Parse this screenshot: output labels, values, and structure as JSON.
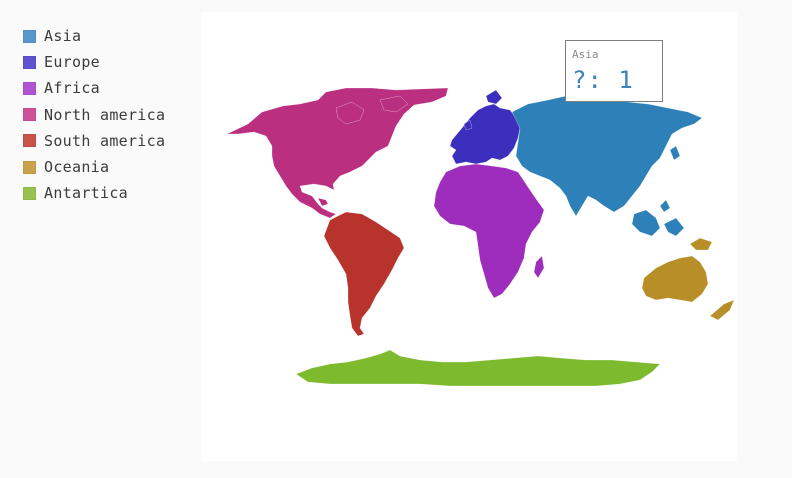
{
  "legend": [
    {
      "label": "Asia",
      "color": "#5897cb"
    },
    {
      "label": "Europe",
      "color": "#5d52d0"
    },
    {
      "label": "Africa",
      "color": "#b053d2"
    },
    {
      "label": "North america",
      "color": "#cc5199"
    },
    {
      "label": "South america",
      "color": "#c75349"
    },
    {
      "label": "Oceania",
      "color": "#c9a24b"
    },
    {
      "label": "Antartica",
      "color": "#98c250"
    }
  ],
  "map_colors": {
    "asia": "#2e80b8",
    "europe": "#3d2fbe",
    "africa": "#9e2dbd",
    "north_america": "#bb2f80",
    "south_america": "#b8332c",
    "oceania": "#b78e28",
    "antarctica": "#7dba2d"
  },
  "tooltip": {
    "title": "Asia",
    "value": "?: 1"
  }
}
